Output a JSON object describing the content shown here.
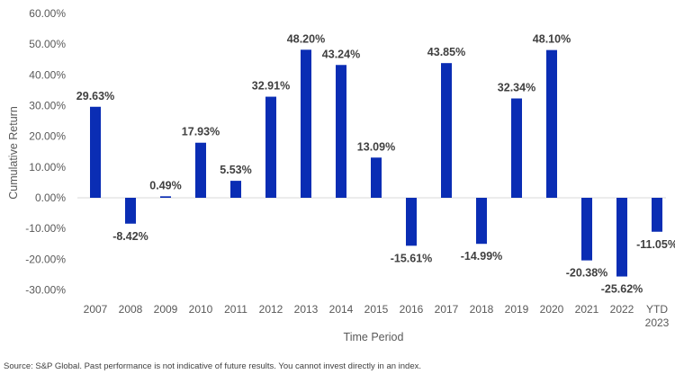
{
  "chart_data": {
    "type": "bar",
    "categories": [
      "2007",
      "2008",
      "2009",
      "2010",
      "2011",
      "2012",
      "2013",
      "2014",
      "2015",
      "2016",
      "2017",
      "2018",
      "2019",
      "2020",
      "2021",
      "2022",
      "YTD 2023"
    ],
    "values": [
      29.63,
      -8.42,
      0.49,
      17.93,
      5.53,
      32.91,
      48.2,
      43.24,
      13.09,
      -15.61,
      43.85,
      -14.99,
      32.34,
      48.1,
      -20.38,
      -25.62,
      -11.05
    ],
    "value_labels": [
      "29.63%",
      "-8.42%",
      "0.49%",
      "17.93%",
      "5.53%",
      "32.91%",
      "48.20%",
      "43.24%",
      "13.09%",
      "-15.61%",
      "43.85%",
      "-14.99%",
      "32.34%",
      "48.10%",
      "-20.38%",
      "-25.62%",
      "-11.05%"
    ],
    "yticks": [
      60,
      50,
      40,
      30,
      20,
      10,
      0,
      -10,
      -20,
      -30
    ],
    "ytick_labels": [
      "60.00%",
      "50.00%",
      "40.00%",
      "30.00%",
      "20.00%",
      "10.00%",
      "0.00%",
      "-10.00%",
      "-20.00%",
      "-30.00%"
    ],
    "ylim": [
      -30,
      60
    ],
    "xlabel": "Time Period",
    "ylabel": "Cumulative Return",
    "title": "",
    "grid": false,
    "legend": "none",
    "bar_color": "#0a2db4"
  },
  "footer": {
    "source": "Source: S&P Global. Past performance is not indicative of future results. You cannot invest directly in an index."
  }
}
